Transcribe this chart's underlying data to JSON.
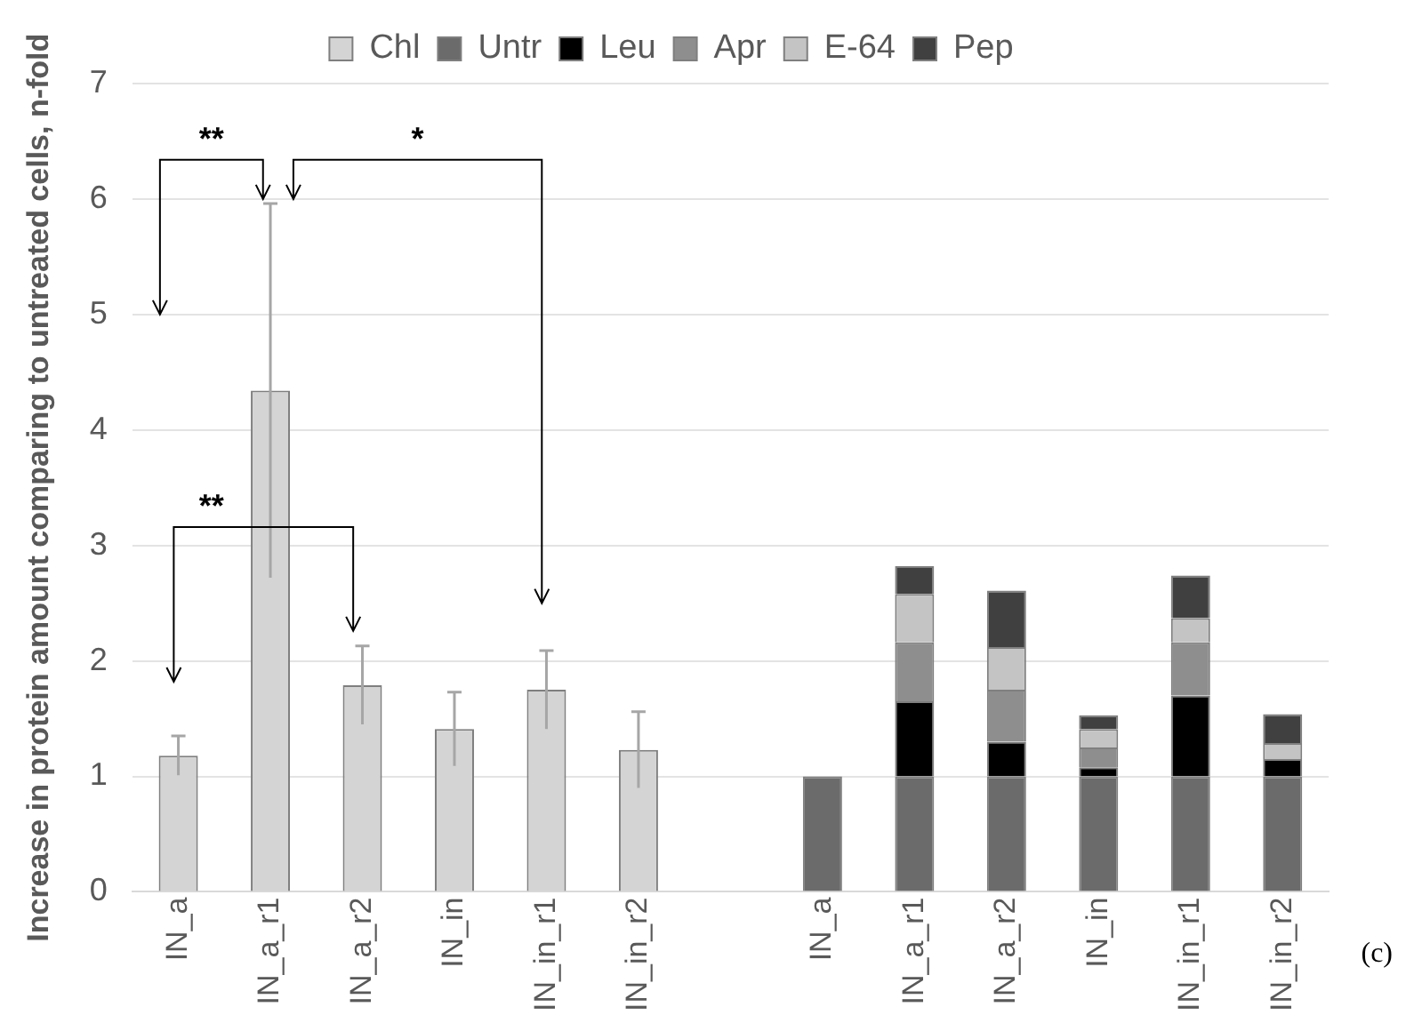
{
  "chart_data": {
    "type": "bar",
    "stacked": true,
    "ylabel": "Increase in protein amount comparing to untreated cells, n-fold",
    "categories": [
      "IN_a",
      "IN_a_r1",
      "IN_a_r2",
      "IN_in",
      "IN_in_r1",
      "IN_in_r2",
      null,
      "IN_a",
      "IN_a_r1",
      "IN_a_r2",
      "IN_in",
      "IN_in_r1",
      "IN_in_r2"
    ],
    "series": [
      {
        "name": "Chl",
        "color": "#d4d4d4",
        "values": [
          1.18,
          4.34,
          1.79,
          1.41,
          1.75,
          1.23,
          null,
          null,
          null,
          null,
          null,
          null,
          null
        ],
        "errors": [
          0.17,
          1.62,
          0.34,
          0.32,
          0.34,
          0.33,
          null,
          null,
          null,
          null,
          null,
          null,
          null
        ]
      },
      {
        "name": "Untr",
        "color": "#6b6b6b",
        "values": [
          null,
          null,
          null,
          null,
          null,
          null,
          null,
          1,
          1,
          1,
          1,
          1,
          1
        ]
      },
      {
        "name": "Leu",
        "color": "#000000",
        "values": [
          null,
          null,
          null,
          null,
          null,
          null,
          null,
          null,
          0.65,
          0.3,
          0.08,
          0.7,
          0.15
        ]
      },
      {
        "name": "Apr",
        "color": "#8e8e8e",
        "values": [
          null,
          null,
          null,
          null,
          null,
          null,
          null,
          null,
          0.51,
          0.45,
          0.17,
          0.46,
          null
        ]
      },
      {
        "name": "E-64",
        "color": "#c4c4c4",
        "values": [
          null,
          null,
          null,
          null,
          null,
          null,
          null,
          null,
          0.42,
          0.37,
          0.16,
          0.21,
          0.14
        ]
      },
      {
        "name": "Pep",
        "color": "#404040",
        "values": [
          null,
          null,
          null,
          null,
          null,
          null,
          null,
          null,
          0.24,
          0.49,
          0.12,
          0.37,
          0.25
        ]
      }
    ],
    "ylim": [
      0,
      7
    ],
    "yticks": [
      0,
      1,
      2,
      3,
      4,
      5,
      6,
      7
    ],
    "grid": "y",
    "legend": "top",
    "annotations": [
      "**",
      "*",
      "**",
      "(c)"
    ]
  }
}
